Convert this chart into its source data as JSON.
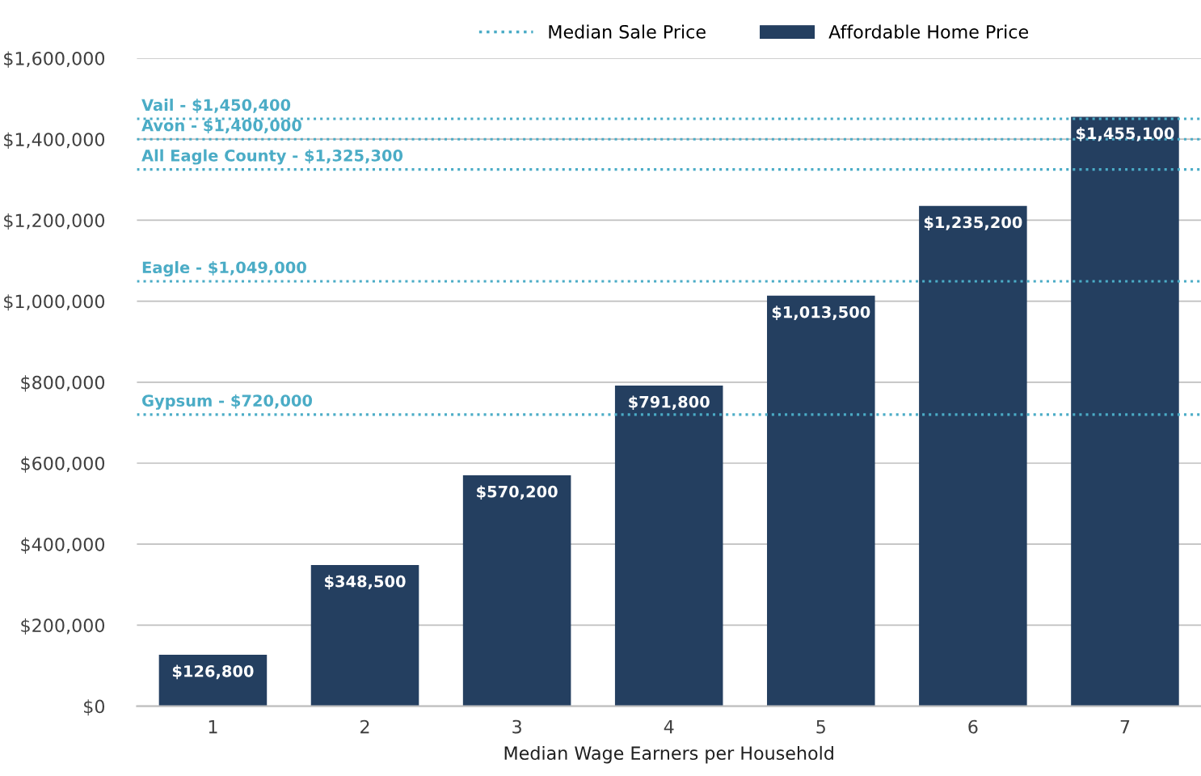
{
  "chart_data": {
    "type": "bar",
    "xlabel": "Median Wage Earners per Household",
    "categories": [
      "1",
      "2",
      "3",
      "4",
      "5",
      "6",
      "7"
    ],
    "series": [
      {
        "name": "Median Sale Price",
        "type": "line",
        "line_style": "dotted",
        "color": "#4bacc6",
        "values": [
          null,
          null,
          null,
          null,
          null,
          null,
          null
        ]
      },
      {
        "name": "Affordable Home Price",
        "color": "#243f60",
        "values": [
          126800,
          348500,
          570200,
          791800,
          1013500,
          1235200,
          1455100
        ],
        "value_labels": [
          "$126,800",
          "$348,500",
          "$570,200",
          "$791,800",
          "$1,013,500",
          "$1,235,200",
          "$1,455,100"
        ]
      }
    ],
    "ylim": [
      0,
      1600000
    ],
    "yticks": [
      {
        "value": 0,
        "label": "$0"
      },
      {
        "value": 200000,
        "label": "$200,000"
      },
      {
        "value": 400000,
        "label": "$400,000"
      },
      {
        "value": 600000,
        "label": "$600,000"
      },
      {
        "value": 800000,
        "label": "$800,000"
      },
      {
        "value": 1000000,
        "label": "$1,000,000"
      },
      {
        "value": 1200000,
        "label": "$1,200,000"
      },
      {
        "value": 1400000,
        "label": "$1,400,000"
      },
      {
        "value": 1600000,
        "label": "$1,600,000"
      }
    ],
    "ref_lines": [
      {
        "axis": "y",
        "value": 1450400,
        "label": "Vail - $1,450,400",
        "color": "#4bacc6",
        "line_style": "dotted"
      },
      {
        "axis": "y",
        "value": 1400000,
        "label": "Avon - $1,400,000",
        "color": "#4bacc6",
        "line_style": "dotted"
      },
      {
        "axis": "y",
        "value": 1325300,
        "label": "All Eagle County - $1,325,300",
        "color": "#4bacc6",
        "line_style": "dotted"
      },
      {
        "axis": "y",
        "value": 1049000,
        "label": "Eagle - $1,049,000",
        "color": "#4bacc6",
        "line_style": "dotted"
      },
      {
        "axis": "y",
        "value": 720000,
        "label": "Gypsum - $720,000",
        "color": "#4bacc6",
        "line_style": "dotted"
      }
    ],
    "grid": "y",
    "legend": "top"
  }
}
